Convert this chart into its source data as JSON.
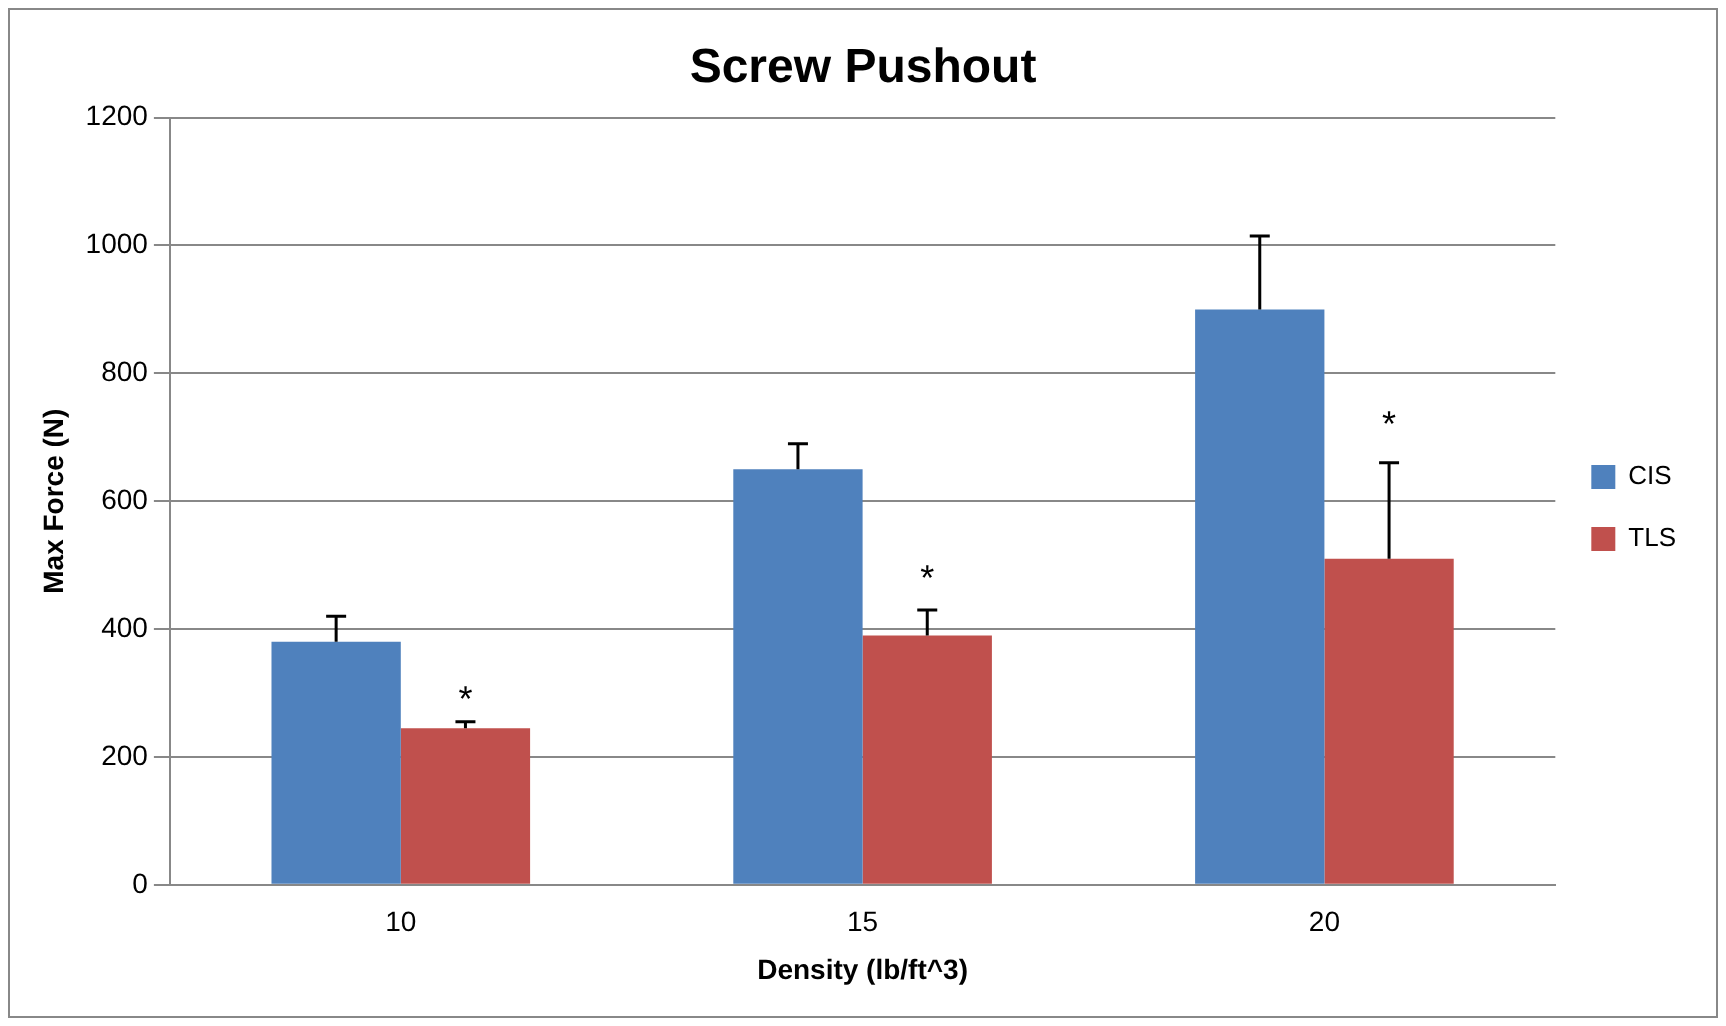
{
  "chart_data": {
    "type": "bar",
    "title": "Screw Pushout",
    "xlabel": "Density (lb/ft^3)",
    "ylabel": "Max Force (N)",
    "categories": [
      "10",
      "15",
      "20"
    ],
    "series": [
      {
        "name": "CIS",
        "color": "#4f81bd",
        "values": [
          380,
          650,
          900
        ],
        "errors": [
          [
            380,
            420
          ],
          [
            650,
            690
          ],
          [
            900,
            1015
          ]
        ]
      },
      {
        "name": "TLS",
        "color": "#c0504d",
        "values": [
          245,
          390,
          510
        ],
        "errors": [
          [
            245,
            255
          ],
          [
            390,
            430
          ],
          [
            510,
            660
          ]
        ]
      }
    ],
    "ylim": [
      0,
      1200
    ],
    "yticks": [
      0,
      200,
      400,
      600,
      800,
      1000,
      1200
    ],
    "grid": "y",
    "legend": "right",
    "annotations": [
      {
        "text": "*",
        "x": "10",
        "y": 290
      },
      {
        "text": "*",
        "x": "15",
        "y": 480
      },
      {
        "text": "*",
        "x": "20",
        "y": 720
      }
    ]
  }
}
